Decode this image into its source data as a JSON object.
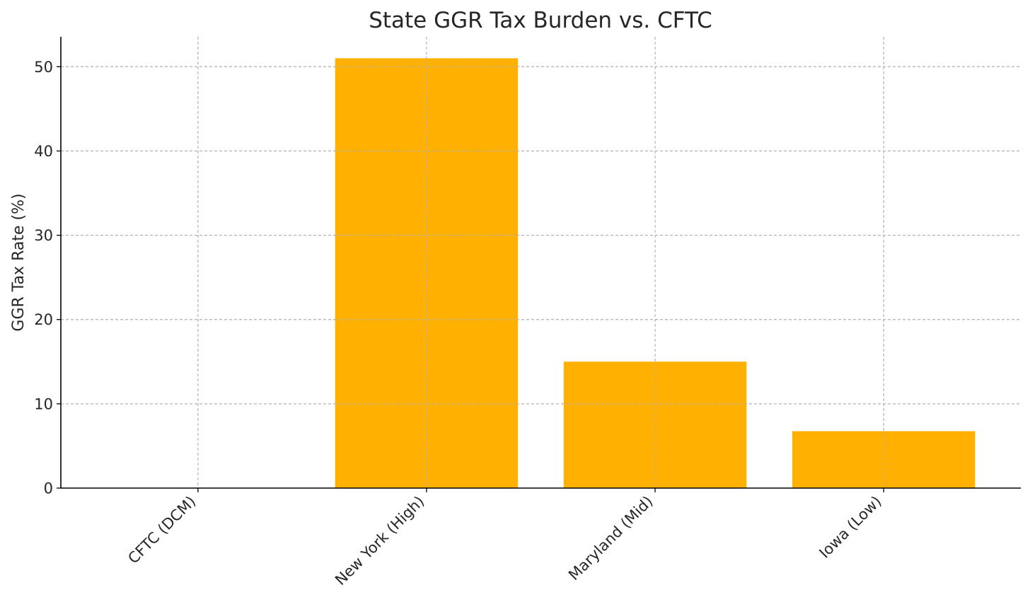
{
  "chart_data": {
    "type": "bar",
    "title": "State GGR Tax Burden vs. CFTC",
    "xlabel": "",
    "ylabel": "GGR Tax Rate (%)",
    "categories": [
      "CFTC (DCM)",
      "New York (High)",
      "Maryland (Mid)",
      "Iowa (Low)"
    ],
    "values": [
      0,
      51,
      15,
      6.75
    ],
    "ylim": [
      0,
      53.55
    ],
    "yticks": [
      0,
      10,
      20,
      30,
      40,
      50
    ],
    "grid": true,
    "bar_color": "#FFB000"
  }
}
